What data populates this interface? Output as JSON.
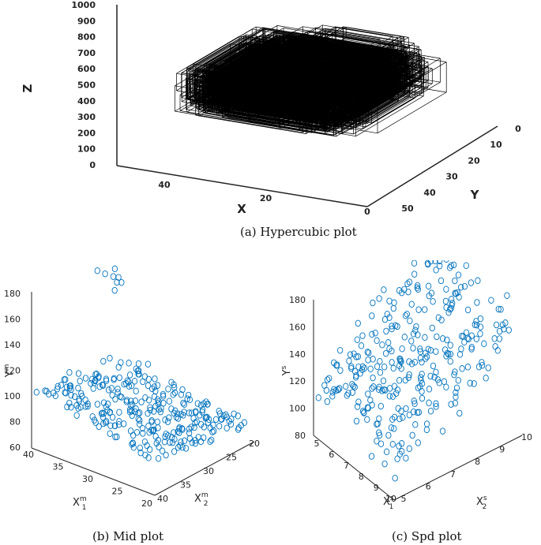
{
  "captions": {
    "a": "(a) Hypercubic plot",
    "b": "(b) Mid plot",
    "c": "(c) Spd plot"
  },
  "colors": {
    "axis": "#222222",
    "box": "#000000",
    "marker": "#0072BD"
  },
  "chart_data": [
    {
      "id": "hypercubic",
      "type": "3d-box",
      "title": "",
      "xlabel": "X",
      "ylabel": "Y",
      "zlabel": "Z",
      "x_ticks": [
        "40",
        "20",
        "0"
      ],
      "y_ticks": [
        "0",
        "10",
        "20",
        "30",
        "40",
        "50"
      ],
      "z_ticks": [
        "1000",
        "900",
        "800",
        "700",
        "600",
        "500",
        "400",
        "300",
        "200",
        "100",
        "0"
      ],
      "xlim": [
        0,
        50
      ],
      "ylim": [
        0,
        50
      ],
      "zlim": [
        0,
        1000
      ],
      "clusters": [
        {
          "name": "",
          "x_range": [
            5,
            45
          ],
          "y_range": [
            0,
            50
          ],
          "z_range": [
            300,
            600
          ],
          "boxes": 300
        },
        {
          "name": "",
          "x_range": [
            5,
            25
          ],
          "y_range": [
            0,
            30
          ],
          "z_range": [
            600,
            800
          ],
          "boxes": 12
        }
      ]
    },
    {
      "id": "mid",
      "type": "scatter",
      "title": "",
      "xlabel": "X1m",
      "ylabel": "X2m",
      "zlabel": "Ym",
      "xlabel_main": "X",
      "xlabel_sup": "m",
      "xlabel_sub": "1",
      "ylabel_main": "X",
      "ylabel_sup": "m",
      "ylabel_sub": "2",
      "zlabel_main": "Y",
      "zlabel_sup": "m",
      "x_ticks": [
        "40",
        "35",
        "30",
        "25",
        "20"
      ],
      "y_ticks": [
        "40",
        "35",
        "30",
        "25",
        "20"
      ],
      "z_ticks": [
        "180",
        "160",
        "140",
        "120",
        "100",
        "80",
        "60"
      ],
      "xlim": [
        20,
        40
      ],
      "ylim": [
        20,
        40
      ],
      "zlim": [
        60,
        180
      ],
      "marker": "circle",
      "points_approx": 320
    },
    {
      "id": "spd",
      "type": "scatter",
      "title": "",
      "xlabel": "X1s",
      "ylabel": "X2s",
      "zlabel": "Ys",
      "xlabel_main": "X",
      "xlabel_sup": "s",
      "xlabel_sub": "1",
      "ylabel_main": "X",
      "ylabel_sup": "s",
      "ylabel_sub": "2",
      "zlabel_main": "Y",
      "zlabel_sup": "s",
      "x_ticks": [
        "5",
        "6",
        "7",
        "8",
        "9",
        "10"
      ],
      "y_ticks": [
        "5",
        "6",
        "7",
        "8",
        "9",
        "10"
      ],
      "z_ticks": [
        "180",
        "160",
        "140",
        "120",
        "100",
        "80"
      ],
      "xlim": [
        5,
        10
      ],
      "ylim": [
        5,
        10
      ],
      "zlim": [
        80,
        180
      ],
      "marker": "circle",
      "points_approx": 340
    }
  ]
}
